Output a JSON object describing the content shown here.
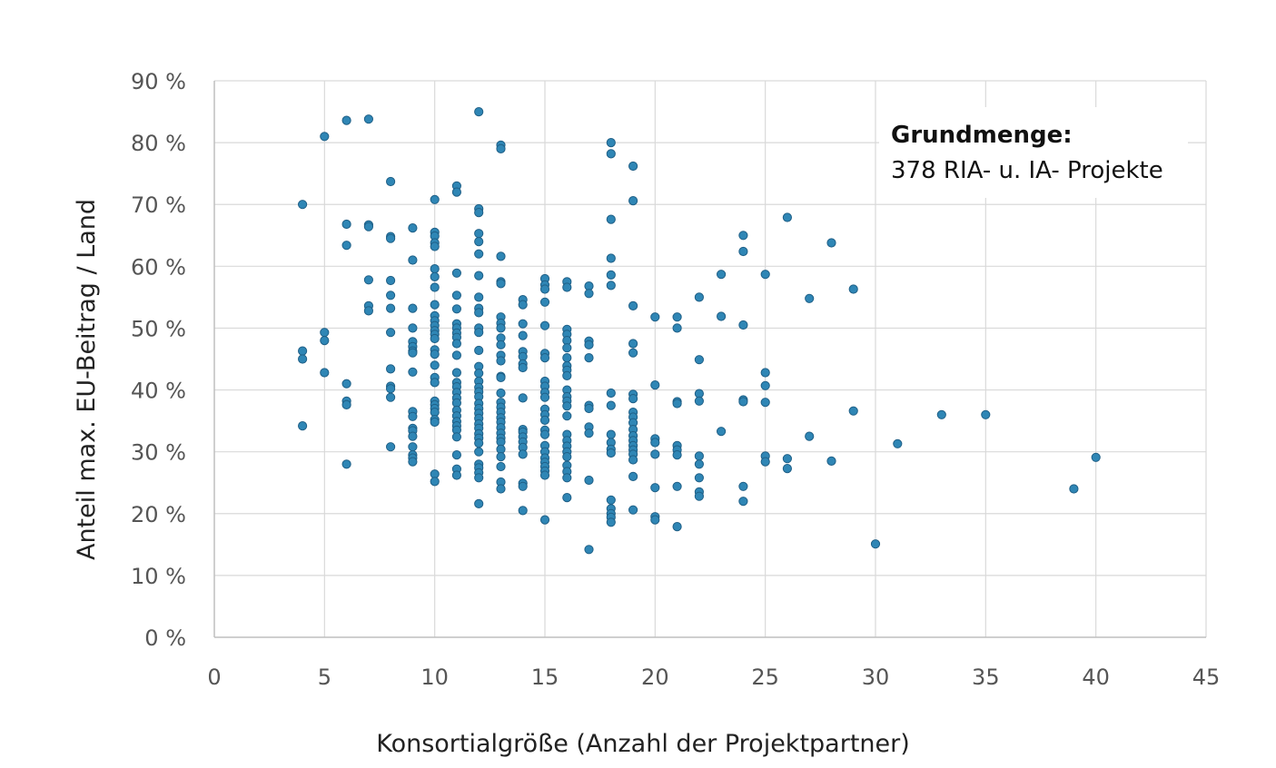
{
  "chart_data": {
    "type": "scatter",
    "xlabel": "Konsortialgröße (Anzahl der Projektpartner)",
    "ylabel": "Anteil max. EU-Beitrag / Land",
    "xlim": [
      0,
      45
    ],
    "ylim": [
      0,
      90
    ],
    "x_ticks": [
      0,
      5,
      10,
      15,
      20,
      25,
      30,
      35,
      40,
      45
    ],
    "x_tick_labels": [
      "0",
      "5",
      "10",
      "15",
      "20",
      "25",
      "30",
      "35",
      "40",
      "45"
    ],
    "y_ticks": [
      0,
      10,
      20,
      30,
      40,
      50,
      60,
      70,
      80,
      90
    ],
    "y_tick_labels": [
      "0 %",
      "10 %",
      "20 %",
      "30 %",
      "40 %",
      "50 %",
      "60 %",
      "70 %",
      "80 %",
      "90 %"
    ],
    "grid": true,
    "annotation": {
      "title": "Grundmenge:",
      "text": "378 RIA- u. IA- Projekte",
      "placement": "top-right"
    },
    "colors": {
      "point_fill": "#2f86b5",
      "point_stroke": "#1f5f86",
      "grid": "#d9d9d9",
      "axis": "#bfbfbf"
    },
    "points": [
      [
        4,
        70
      ],
      [
        4,
        46.3
      ],
      [
        4,
        45
      ],
      [
        4,
        34.2
      ],
      [
        5,
        81
      ],
      [
        5,
        49.3
      ],
      [
        5,
        48
      ],
      [
        5,
        42.8
      ],
      [
        6,
        83.6
      ],
      [
        6,
        66.8
      ],
      [
        6,
        63.4
      ],
      [
        6,
        41
      ],
      [
        6,
        38.2
      ],
      [
        6,
        37.6
      ],
      [
        6,
        28
      ],
      [
        7,
        83.8
      ],
      [
        7,
        66.7
      ],
      [
        7,
        66.4
      ],
      [
        7,
        57.8
      ],
      [
        7,
        53.6
      ],
      [
        7,
        52.8
      ],
      [
        8,
        73.7
      ],
      [
        8,
        64.8
      ],
      [
        8,
        64.5
      ],
      [
        8,
        57.7
      ],
      [
        8,
        55.3
      ],
      [
        8,
        53.2
      ],
      [
        8,
        49.3
      ],
      [
        8,
        43.4
      ],
      [
        8,
        40.6
      ],
      [
        8,
        40.2
      ],
      [
        8,
        38.8
      ],
      [
        8,
        30.8
      ],
      [
        9,
        66.2
      ],
      [
        9,
        61
      ],
      [
        9,
        53.2
      ],
      [
        9,
        50
      ],
      [
        9,
        47.8
      ],
      [
        9,
        47
      ],
      [
        9,
        46.3
      ],
      [
        9,
        46
      ],
      [
        9,
        42.9
      ],
      [
        9,
        36.5
      ],
      [
        9,
        35.7
      ],
      [
        9,
        33.8
      ],
      [
        9,
        33.4
      ],
      [
        9,
        32.5
      ],
      [
        9,
        30.8
      ],
      [
        9,
        29.5
      ],
      [
        9,
        29
      ],
      [
        9,
        28.4
      ],
      [
        10,
        70.8
      ],
      [
        10,
        65.5
      ],
      [
        10,
        64.9
      ],
      [
        10,
        63.8
      ],
      [
        10,
        63.2
      ],
      [
        10,
        59.6
      ],
      [
        10,
        58.3
      ],
      [
        10,
        56.6
      ],
      [
        10,
        53.8
      ],
      [
        10,
        52
      ],
      [
        10,
        51.2
      ],
      [
        10,
        50.4
      ],
      [
        10,
        49.6
      ],
      [
        10,
        49
      ],
      [
        10,
        48.3
      ],
      [
        10,
        46.5
      ],
      [
        10,
        45.8
      ],
      [
        10,
        44
      ],
      [
        10,
        42
      ],
      [
        10,
        41.2
      ],
      [
        10,
        38.2
      ],
      [
        10,
        37.6
      ],
      [
        10,
        37
      ],
      [
        10,
        36.4
      ],
      [
        10,
        35.2
      ],
      [
        10,
        34.8
      ],
      [
        10,
        26.4
      ],
      [
        10,
        25.2
      ],
      [
        11,
        73
      ],
      [
        11,
        72
      ],
      [
        11,
        58.9
      ],
      [
        11,
        55.3
      ],
      [
        11,
        53.1
      ],
      [
        11,
        50.7
      ],
      [
        11,
        50
      ],
      [
        11,
        49.2
      ],
      [
        11,
        48.5
      ],
      [
        11,
        47.5
      ],
      [
        11,
        45.6
      ],
      [
        11,
        42.8
      ],
      [
        11,
        41.2
      ],
      [
        11,
        40.5
      ],
      [
        11,
        39.6
      ],
      [
        11,
        38.7
      ],
      [
        11,
        37.9
      ],
      [
        11,
        36.7
      ],
      [
        11,
        35.8
      ],
      [
        11,
        34.9
      ],
      [
        11,
        34.2
      ],
      [
        11,
        33.5
      ],
      [
        11,
        32.4
      ],
      [
        11,
        29.5
      ],
      [
        11,
        27.2
      ],
      [
        11,
        26.2
      ],
      [
        12,
        85
      ],
      [
        12,
        69.3
      ],
      [
        12,
        68.7
      ],
      [
        12,
        65.3
      ],
      [
        12,
        64
      ],
      [
        12,
        62
      ],
      [
        12,
        58.5
      ],
      [
        12,
        55
      ],
      [
        12,
        53.2
      ],
      [
        12,
        52.5
      ],
      [
        12,
        50
      ],
      [
        12,
        49.3
      ],
      [
        12,
        46.4
      ],
      [
        12,
        43.8
      ],
      [
        12,
        42.7
      ],
      [
        12,
        41.4
      ],
      [
        12,
        40.4
      ],
      [
        12,
        39.7
      ],
      [
        12,
        38.9
      ],
      [
        12,
        37.8
      ],
      [
        12,
        37
      ],
      [
        12,
        36.2
      ],
      [
        12,
        35.4
      ],
      [
        12,
        34.5
      ],
      [
        12,
        33.8
      ],
      [
        12,
        32.9
      ],
      [
        12,
        32.2
      ],
      [
        12,
        31.4
      ],
      [
        12,
        30
      ],
      [
        12,
        28
      ],
      [
        12,
        27.4
      ],
      [
        12,
        26.6
      ],
      [
        12,
        25.8
      ],
      [
        12,
        21.6
      ],
      [
        13,
        79.6
      ],
      [
        13,
        79
      ],
      [
        13,
        61.6
      ],
      [
        13,
        57.5
      ],
      [
        13,
        57.2
      ],
      [
        13,
        51.8
      ],
      [
        13,
        50.8
      ],
      [
        13,
        50
      ],
      [
        13,
        48.4
      ],
      [
        13,
        47.3
      ],
      [
        13,
        45.6
      ],
      [
        13,
        44.7
      ],
      [
        13,
        42.2
      ],
      [
        13,
        42
      ],
      [
        13,
        39.5
      ],
      [
        13,
        38
      ],
      [
        13,
        37.2
      ],
      [
        13,
        36.4
      ],
      [
        13,
        35.5
      ],
      [
        13,
        34.8
      ],
      [
        13,
        33.9
      ],
      [
        13,
        33
      ],
      [
        13,
        32.2
      ],
      [
        13,
        31.6
      ],
      [
        13,
        30.4
      ],
      [
        13,
        29.2
      ],
      [
        13,
        27.6
      ],
      [
        13,
        25.1
      ],
      [
        13,
        24
      ],
      [
        14,
        54.6
      ],
      [
        14,
        53.8
      ],
      [
        14,
        50.7
      ],
      [
        14,
        48.8
      ],
      [
        14,
        46.2
      ],
      [
        14,
        45.4
      ],
      [
        14,
        44.2
      ],
      [
        14,
        43.6
      ],
      [
        14,
        38.7
      ],
      [
        14,
        33.6
      ],
      [
        14,
        33.2
      ],
      [
        14,
        32.4
      ],
      [
        14,
        31.6
      ],
      [
        14,
        30.7
      ],
      [
        14,
        29.6
      ],
      [
        14,
        24.9
      ],
      [
        14,
        24.4
      ],
      [
        14,
        20.5
      ],
      [
        15,
        58
      ],
      [
        15,
        57
      ],
      [
        15,
        56.3
      ],
      [
        15,
        54.2
      ],
      [
        15,
        50.4
      ],
      [
        15,
        45.9
      ],
      [
        15,
        45.2
      ],
      [
        15,
        41.4
      ],
      [
        15,
        40.6
      ],
      [
        15,
        39.6
      ],
      [
        15,
        38.8
      ],
      [
        15,
        36.9
      ],
      [
        15,
        36
      ],
      [
        15,
        35.1
      ],
      [
        15,
        33.5
      ],
      [
        15,
        32.8
      ],
      [
        15,
        31
      ],
      [
        15,
        30
      ],
      [
        15,
        29
      ],
      [
        15,
        28.3
      ],
      [
        15,
        27.6
      ],
      [
        15,
        26.9
      ],
      [
        15,
        26.2
      ],
      [
        15,
        19
      ],
      [
        16,
        57.5
      ],
      [
        16,
        56.6
      ],
      [
        16,
        49.8
      ],
      [
        16,
        49
      ],
      [
        16,
        48
      ],
      [
        16,
        46.8
      ],
      [
        16,
        45.2
      ],
      [
        16,
        43.9
      ],
      [
        16,
        43.2
      ],
      [
        16,
        42.3
      ],
      [
        16,
        40
      ],
      [
        16,
        38.9
      ],
      [
        16,
        38.2
      ],
      [
        16,
        37.4
      ],
      [
        16,
        35.8
      ],
      [
        16,
        32.8
      ],
      [
        16,
        31.8
      ],
      [
        16,
        30.9
      ],
      [
        16,
        30
      ],
      [
        16,
        29.2
      ],
      [
        16,
        27.8
      ],
      [
        16,
        26.8
      ],
      [
        16,
        25.8
      ],
      [
        16,
        22.6
      ],
      [
        17,
        56.8
      ],
      [
        17,
        55.6
      ],
      [
        17,
        47.9
      ],
      [
        17,
        47.3
      ],
      [
        17,
        45.2
      ],
      [
        17,
        37.5
      ],
      [
        17,
        37
      ],
      [
        17,
        34
      ],
      [
        17,
        33
      ],
      [
        17,
        25.4
      ],
      [
        17,
        14.2
      ],
      [
        18,
        80
      ],
      [
        18,
        78.2
      ],
      [
        18,
        67.6
      ],
      [
        18,
        61.3
      ],
      [
        18,
        58.6
      ],
      [
        18,
        56.9
      ],
      [
        18,
        39.5
      ],
      [
        18,
        37.5
      ],
      [
        18,
        32.8
      ],
      [
        18,
        31.5
      ],
      [
        18,
        30.4
      ],
      [
        18,
        29.8
      ],
      [
        18,
        22.2
      ],
      [
        18,
        20.8
      ],
      [
        18,
        20
      ],
      [
        18,
        19.4
      ],
      [
        18,
        18.6
      ],
      [
        19,
        76.2
      ],
      [
        19,
        70.6
      ],
      [
        19,
        53.6
      ],
      [
        19,
        47.5
      ],
      [
        19,
        46
      ],
      [
        19,
        39.3
      ],
      [
        19,
        38.6
      ],
      [
        19,
        36.4
      ],
      [
        19,
        35.6
      ],
      [
        19,
        34.7
      ],
      [
        19,
        33.6
      ],
      [
        19,
        32.6
      ],
      [
        19,
        31.8
      ],
      [
        19,
        31
      ],
      [
        19,
        30.3
      ],
      [
        19,
        29.6
      ],
      [
        19,
        28.7
      ],
      [
        19,
        26
      ],
      [
        19,
        20.6
      ],
      [
        20,
        51.8
      ],
      [
        20,
        40.8
      ],
      [
        20,
        32.1
      ],
      [
        20,
        31.5
      ],
      [
        20,
        29.6
      ],
      [
        20,
        24.2
      ],
      [
        20,
        19.5
      ],
      [
        20,
        19
      ],
      [
        21,
        51.8
      ],
      [
        21,
        50
      ],
      [
        21,
        38.1
      ],
      [
        21,
        37.8
      ],
      [
        21,
        31
      ],
      [
        21,
        30.3
      ],
      [
        21,
        29.5
      ],
      [
        21,
        24.4
      ],
      [
        21,
        17.9
      ],
      [
        22,
        55
      ],
      [
        22,
        44.9
      ],
      [
        22,
        39.4
      ],
      [
        22,
        38.2
      ],
      [
        22,
        29.3
      ],
      [
        22,
        28
      ],
      [
        22,
        25.8
      ],
      [
        22,
        23.5
      ],
      [
        22,
        22.8
      ],
      [
        23,
        58.7
      ],
      [
        23,
        51.9
      ],
      [
        23,
        33.3
      ],
      [
        24,
        65
      ],
      [
        24,
        62.4
      ],
      [
        24,
        50.5
      ],
      [
        24,
        38.4
      ],
      [
        24,
        38.1
      ],
      [
        24,
        24.4
      ],
      [
        24,
        22
      ],
      [
        25,
        58.7
      ],
      [
        25,
        42.8
      ],
      [
        25,
        40.7
      ],
      [
        25,
        38
      ],
      [
        25,
        29.3
      ],
      [
        25,
        28.4
      ],
      [
        26,
        67.9
      ],
      [
        26,
        28.9
      ],
      [
        26,
        27.3
      ],
      [
        27,
        54.8
      ],
      [
        27,
        32.5
      ],
      [
        28,
        63.8
      ],
      [
        28,
        28.5
      ],
      [
        29,
        56.3
      ],
      [
        29,
        36.6
      ],
      [
        30,
        15.1
      ],
      [
        31,
        31.3
      ],
      [
        33,
        36
      ],
      [
        35,
        36
      ],
      [
        39,
        24
      ],
      [
        40,
        29.1
      ]
    ]
  }
}
